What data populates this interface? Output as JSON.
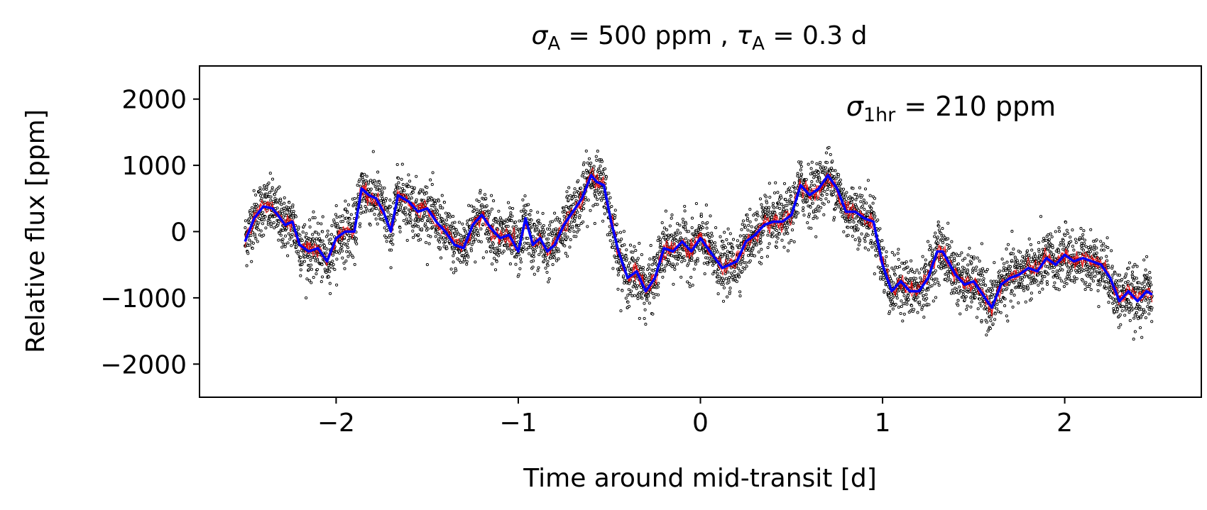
{
  "chart_data": {
    "type": "scatter",
    "title": {
      "sym1": "σ",
      "sub1": "A",
      "mid": " = 500 ppm , ",
      "sym2": "τ",
      "sub2": "A",
      "end": " = 0.3 d"
    },
    "xlabel": "Time around mid-transit [d]",
    "ylabel": "Relative flux [ppm]",
    "xlim": [
      -2.75,
      2.75
    ],
    "ylim": [
      -2500,
      2500
    ],
    "xticks": [
      -2,
      -1,
      0,
      1,
      2
    ],
    "xtick_labels": [
      "−2",
      "−1",
      "0",
      "1",
      "2"
    ],
    "yticks": [
      -2000,
      -1000,
      0,
      1000,
      2000
    ],
    "ytick_labels": [
      "−2000",
      "−1000",
      "0",
      "1000",
      "2000"
    ],
    "grid": false,
    "legend": "none",
    "annotation": {
      "sym": "σ",
      "sub": "1hr",
      "text": " = 210 ppm",
      "x": 0.8,
      "y": 1750
    },
    "series": [
      {
        "kind": "scatter",
        "color": "#000000",
        "x_range": [
          -2.5,
          2.48
        ],
        "scatter_std_ppm": 210,
        "n_points": 5200,
        "note_trend": "scatter follows the binned blue curve"
      },
      {
        "kind": "line",
        "color": "#0000ff",
        "x": [
          -2.5,
          -2.45,
          -2.4,
          -2.35,
          -2.32,
          -2.28,
          -2.24,
          -2.2,
          -2.15,
          -2.1,
          -2.05,
          -2.0,
          -1.95,
          -1.9,
          -1.86,
          -1.82,
          -1.78,
          -1.74,
          -1.7,
          -1.66,
          -1.6,
          -1.55,
          -1.5,
          -1.45,
          -1.4,
          -1.35,
          -1.3,
          -1.25,
          -1.2,
          -1.15,
          -1.1,
          -1.05,
          -1.0,
          -0.96,
          -0.92,
          -0.88,
          -0.84,
          -0.8,
          -0.75,
          -0.7,
          -0.65,
          -0.6,
          -0.57,
          -0.53,
          -0.49,
          -0.45,
          -0.4,
          -0.35,
          -0.3,
          -0.25,
          -0.2,
          -0.15,
          -0.1,
          -0.05,
          0.0,
          0.04,
          0.08,
          0.12,
          0.16,
          0.2,
          0.25,
          0.3,
          0.35,
          0.4,
          0.45,
          0.5,
          0.55,
          0.6,
          0.65,
          0.7,
          0.75,
          0.8,
          0.85,
          0.9,
          0.95,
          1.0,
          1.05,
          1.1,
          1.15,
          1.2,
          1.25,
          1.3,
          1.33,
          1.4,
          1.45,
          1.5,
          1.55,
          1.6,
          1.65,
          1.7,
          1.75,
          1.8,
          1.85,
          1.9,
          1.95,
          2.0,
          2.05,
          2.1,
          2.15,
          2.2,
          2.25,
          2.3,
          2.35,
          2.4,
          2.45,
          2.48
        ],
        "y": [
          -150,
          200,
          380,
          350,
          250,
          100,
          150,
          -200,
          -300,
          -250,
          -450,
          -100,
          0,
          0,
          650,
          550,
          500,
          300,
          0,
          550,
          450,
          300,
          350,
          150,
          0,
          -200,
          -250,
          100,
          250,
          50,
          -100,
          -50,
          -300,
          200,
          -200,
          -100,
          -300,
          -200,
          100,
          300,
          500,
          850,
          750,
          700,
          150,
          -300,
          -700,
          -600,
          -900,
          -700,
          -250,
          -300,
          -150,
          -300,
          -100,
          -250,
          -400,
          -550,
          -500,
          -450,
          -150,
          -50,
          100,
          150,
          150,
          250,
          700,
          550,
          650,
          850,
          650,
          300,
          300,
          200,
          150,
          -500,
          -900,
          -750,
          -900,
          -900,
          -700,
          -300,
          -300,
          -650,
          -800,
          -750,
          -950,
          -1150,
          -800,
          -700,
          -650,
          -550,
          -600,
          -400,
          -500,
          -350,
          -450,
          -400,
          -450,
          -500,
          -700,
          -1050,
          -900,
          -1050,
          -900,
          -950
        ]
      },
      {
        "kind": "line",
        "color": "#ff0000",
        "note": "red model curves hugging the binned curve"
      }
    ]
  }
}
